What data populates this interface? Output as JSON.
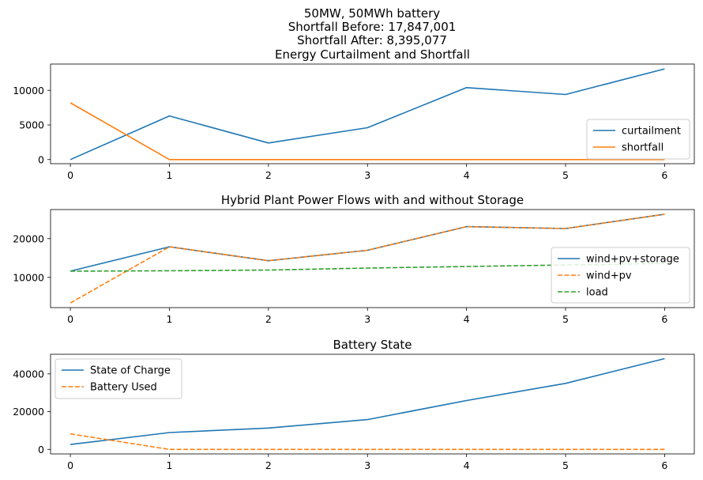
{
  "figure": {
    "title_lines": [
      "50MW, 50MWh battery",
      "Shortfall Before: 17,847,001",
      "Shortfall After: 8,395,077"
    ]
  },
  "colors": {
    "blue": "#1f77b4",
    "orange": "#ff7f0e",
    "green": "#2ca02c"
  },
  "chart_data": [
    {
      "type": "line",
      "title": "Energy Curtailment and Shortfall",
      "x": [
        0,
        1,
        2,
        3,
        4,
        5,
        6
      ],
      "xlim": [
        -0.2,
        6.3
      ],
      "ylim": [
        -600,
        13800
      ],
      "xticks": [
        0,
        1,
        2,
        3,
        4,
        5,
        6
      ],
      "yticks": [
        0,
        5000,
        10000
      ],
      "legend_position": "lower-right",
      "series": [
        {
          "name": "curtailment",
          "color": "#1f77b4",
          "dash": "solid",
          "values": [
            0,
            6300,
            2400,
            4600,
            10400,
            9400,
            13100
          ]
        },
        {
          "name": "shortfall",
          "color": "#ff7f0e",
          "dash": "solid",
          "values": [
            8200,
            0,
            0,
            0,
            0,
            0,
            0
          ]
        }
      ]
    },
    {
      "type": "line",
      "title": "Hybrid Plant Power Flows with and without Storage",
      "x": [
        0,
        1,
        2,
        3,
        4,
        5,
        6
      ],
      "xlim": [
        -0.2,
        6.3
      ],
      "ylim": [
        2200,
        27500
      ],
      "xticks": [
        0,
        1,
        2,
        3,
        4,
        5,
        6
      ],
      "yticks": [
        10000,
        20000
      ],
      "legend_position": "lower-right",
      "series": [
        {
          "name": "wind+pv+storage",
          "color": "#1f77b4",
          "dash": "solid",
          "values": [
            11600,
            17900,
            14300,
            17000,
            23100,
            22600,
            26300
          ]
        },
        {
          "name": "wind+pv",
          "color": "#ff7f0e",
          "dash": "dashed",
          "values": [
            3400,
            17900,
            14300,
            17000,
            23100,
            22600,
            26300
          ]
        },
        {
          "name": "load",
          "color": "#2ca02c",
          "dash": "dashed",
          "values": [
            11600,
            11700,
            11900,
            12400,
            12800,
            13200,
            13600
          ]
        }
      ]
    },
    {
      "type": "line",
      "title": "Battery State",
      "x": [
        0,
        1,
        2,
        3,
        4,
        5,
        6
      ],
      "xlim": [
        -0.2,
        6.3
      ],
      "ylim": [
        -2400,
        50400
      ],
      "xticks": [
        0,
        1,
        2,
        3,
        4,
        5,
        6
      ],
      "yticks": [
        0,
        20000,
        40000
      ],
      "legend_position": "upper-left",
      "series": [
        {
          "name": "State of Charge",
          "color": "#1f77b4",
          "dash": "solid",
          "values": [
            2600,
            8900,
            11300,
            15800,
            25900,
            35000,
            48100
          ]
        },
        {
          "name": "Battery Used",
          "color": "#ff7f0e",
          "dash": "dashed",
          "values": [
            8200,
            0,
            0,
            0,
            0,
            0,
            0
          ]
        }
      ]
    }
  ]
}
